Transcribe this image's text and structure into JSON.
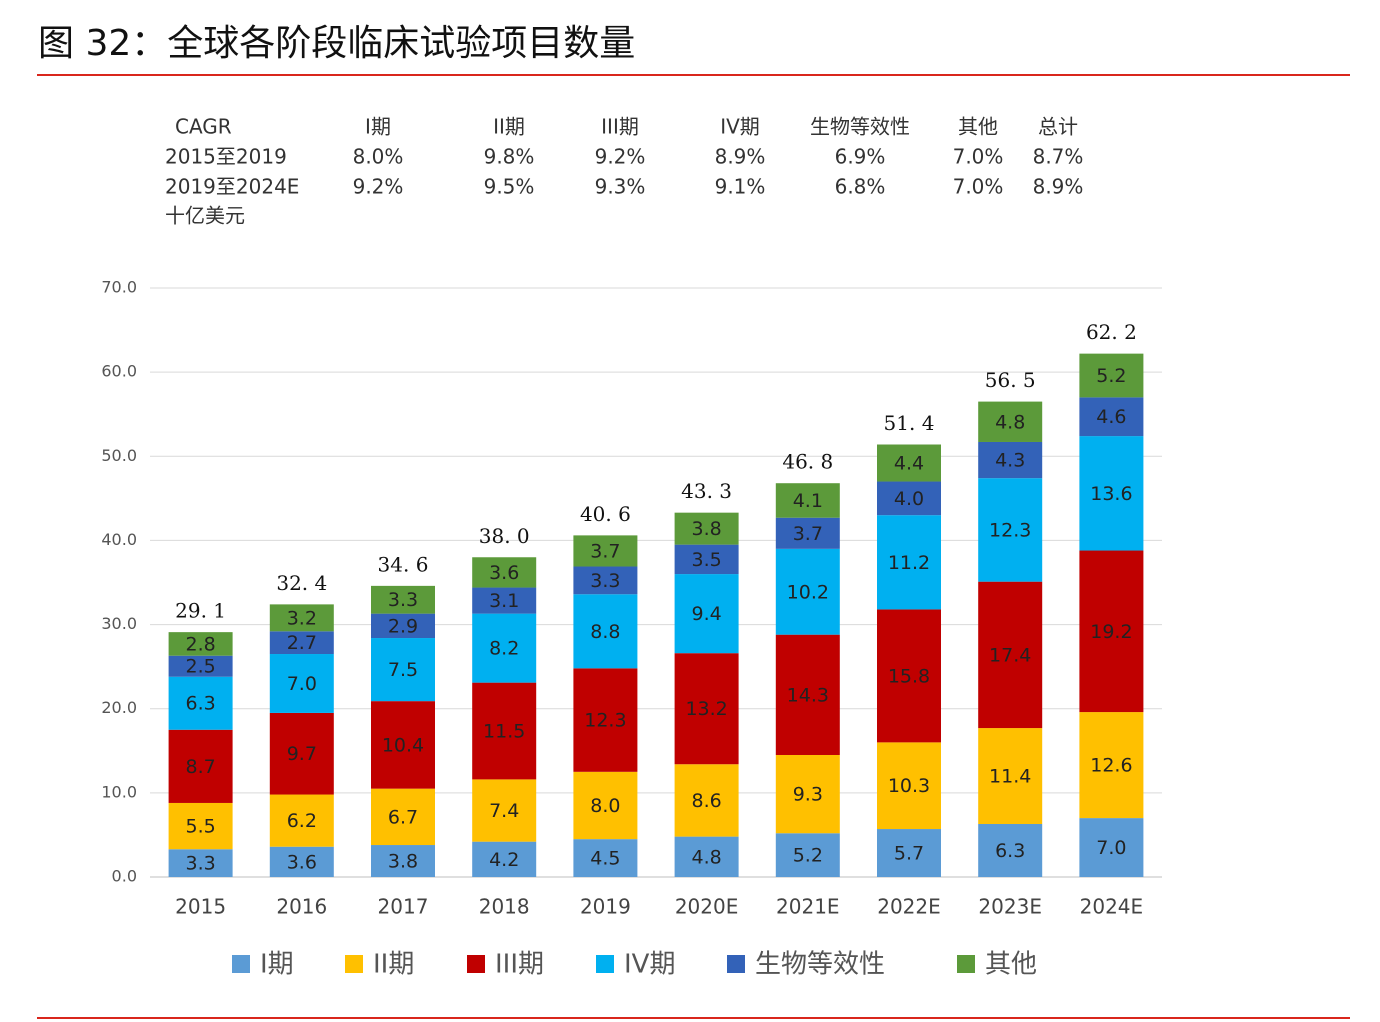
{
  "chart_data": {
    "type": "stacked_bar",
    "title": "图 32：全球各阶段临床试验项目数量",
    "y_label": "十亿美元",
    "categories": [
      "2015",
      "2016",
      "2017",
      "2018",
      "2019",
      "2020E",
      "2021E",
      "2022E",
      "2023E",
      "2024E"
    ],
    "series": [
      {
        "name": "I期",
        "color": "#5b9bd5",
        "values": [
          3.3,
          3.6,
          3.8,
          4.2,
          4.5,
          4.8,
          5.2,
          5.7,
          6.3,
          7.0
        ],
        "value_labels": [
          "3.3",
          "3.6",
          "3.8",
          "4.2",
          "4.5",
          "4.8",
          "5.2",
          "5.7",
          "6.3",
          "7.0"
        ]
      },
      {
        "name": "II期",
        "color": "#ffc000",
        "values": [
          5.5,
          6.2,
          6.7,
          7.4,
          8.0,
          8.6,
          9.3,
          10.3,
          11.4,
          12.6
        ],
        "value_labels": [
          "5.5",
          "6.2",
          "6.7",
          "7.4",
          "8.0",
          "8.6",
          "9.3",
          "10.3",
          "11.4",
          "12.6"
        ]
      },
      {
        "name": "III期",
        "color": "#c00000",
        "values": [
          8.7,
          9.7,
          10.4,
          11.5,
          12.3,
          13.2,
          14.3,
          15.8,
          17.4,
          19.2
        ],
        "value_labels": [
          "8.7",
          "9.7",
          "10.4",
          "11.5",
          "12.3",
          "13.2",
          "14.3",
          "15.8",
          "17.4",
          "19.2"
        ]
      },
      {
        "name": "IV期",
        "color": "#00b0f0",
        "values": [
          6.3,
          7.0,
          7.5,
          8.2,
          8.8,
          9.4,
          10.2,
          11.2,
          12.3,
          13.6
        ],
        "value_labels": [
          "6.3",
          "7.0",
          "7.5",
          "8.2",
          "8.8",
          "9.4",
          "10.2",
          "11.2",
          "12.3",
          "13.6"
        ]
      },
      {
        "name": "生物等效性",
        "color": "#3362b8",
        "values": [
          2.5,
          2.7,
          2.9,
          3.1,
          3.3,
          3.5,
          3.7,
          4.0,
          4.3,
          4.6
        ],
        "value_labels": [
          "2.5",
          "2.7",
          "2.9",
          "3.1",
          "3.3",
          "3.5",
          "3.7",
          "4.0",
          "4.3",
          "4.6"
        ]
      },
      {
        "name": "其他",
        "color": "#5c9a3a",
        "values": [
          2.8,
          3.2,
          3.3,
          3.6,
          3.7,
          3.8,
          4.1,
          4.4,
          4.8,
          5.2
        ],
        "value_labels": [
          "2.8",
          "3.2",
          "3.3",
          "3.6",
          "3.7",
          "3.8",
          "4.1",
          "4.4",
          "4.8",
          "5.2"
        ]
      }
    ],
    "totals": [
      29.1,
      32.4,
      34.6,
      38.0,
      40.6,
      43.3,
      46.8,
      51.4,
      56.5,
      62.2
    ],
    "total_labels": [
      "29. 1",
      "32. 4",
      "34. 6",
      "38. 0",
      "40. 6",
      "43. 3",
      "46. 8",
      "51. 4",
      "56. 5",
      "62. 2"
    ],
    "ylim": [
      0,
      70
    ],
    "yticks": [
      {
        "value": 0,
        "label": "0.0"
      },
      {
        "value": 10,
        "label": "10.0"
      },
      {
        "value": 20,
        "label": "20.0"
      },
      {
        "value": 30,
        "label": "30.0"
      },
      {
        "value": 40,
        "label": "40.0"
      },
      {
        "value": 50,
        "label": "50.0"
      },
      {
        "value": 60,
        "label": "60.0"
      },
      {
        "value": 70,
        "label": "70.0"
      }
    ],
    "grid": true
  },
  "cagr_table": {
    "header": [
      "CAGR",
      "I期",
      "II期",
      "III期",
      "IV期",
      "生物等效性",
      "其他",
      "总计"
    ],
    "rows": [
      [
        "2015至2019",
        "8.0%",
        "9.8%",
        "9.2%",
        "8.9%",
        "6.9%",
        "7.0%",
        "8.7%"
      ],
      [
        "2019至2024E",
        "9.2%",
        "9.5%",
        "9.3%",
        "9.1%",
        "6.8%",
        "7.0%",
        "8.9%"
      ]
    ]
  }
}
